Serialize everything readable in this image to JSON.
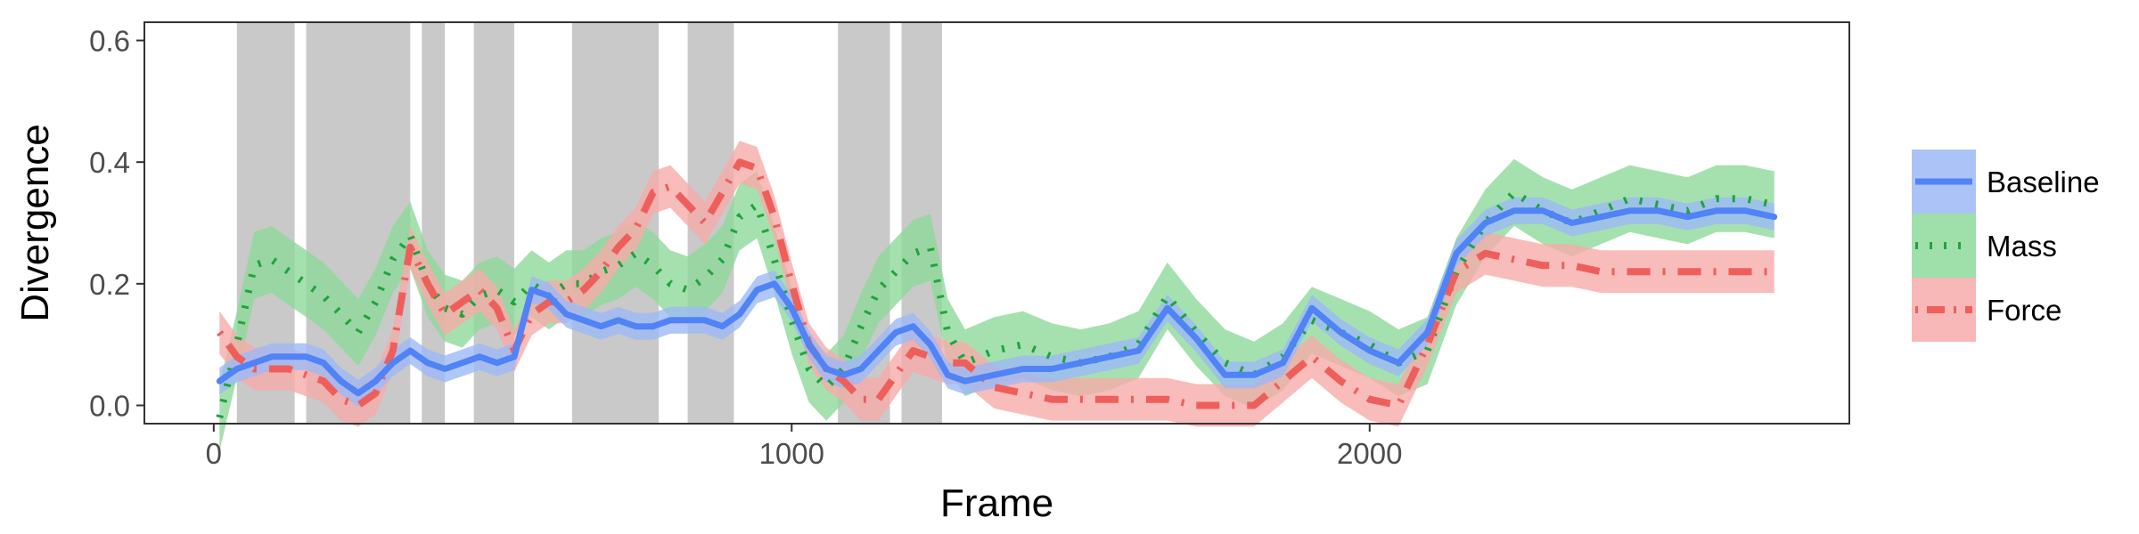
{
  "chart_data": {
    "type": "line",
    "title": "",
    "xlabel": "Frame",
    "ylabel": "Divergence",
    "xlim": [
      -120,
      2830
    ],
    "ylim": [
      -0.03,
      0.63
    ],
    "x_ticks": [
      0,
      1000,
      2000
    ],
    "y_ticks": [
      0.0,
      0.2,
      0.4,
      0.6
    ],
    "x_tick_labels": [
      "0",
      "1000",
      "2000"
    ],
    "y_tick_labels": [
      "0.0",
      "0.2",
      "0.4",
      "0.6"
    ],
    "grid": false,
    "legend_position": "right",
    "shaded_intervals": [
      [
        40,
        140
      ],
      [
        160,
        340
      ],
      [
        360,
        400
      ],
      [
        450,
        520
      ],
      [
        620,
        770
      ],
      [
        820,
        900
      ],
      [
        1080,
        1170
      ],
      [
        1190,
        1260
      ]
    ],
    "x": [
      10,
      40,
      70,
      100,
      130,
      160,
      190,
      220,
      250,
      280,
      310,
      340,
      370,
      400,
      430,
      460,
      490,
      520,
      550,
      580,
      610,
      640,
      670,
      700,
      730,
      760,
      790,
      820,
      850,
      880,
      910,
      940,
      970,
      1000,
      1030,
      1060,
      1090,
      1120,
      1150,
      1180,
      1210,
      1240,
      1270,
      1300,
      1350,
      1400,
      1450,
      1500,
      1550,
      1600,
      1650,
      1700,
      1750,
      1800,
      1850,
      1900,
      1950,
      2000,
      2050,
      2100,
      2150,
      2200,
      2250,
      2300,
      2350,
      2400,
      2450,
      2500,
      2550,
      2600,
      2650,
      2700
    ],
    "series": [
      {
        "name": "Baseline",
        "color": "#5083F5",
        "band_color": "#9CB9F6",
        "line_style": "solid",
        "values": [
          0.04,
          0.06,
          0.07,
          0.08,
          0.08,
          0.08,
          0.07,
          0.04,
          0.02,
          0.04,
          0.07,
          0.09,
          0.07,
          0.06,
          0.07,
          0.08,
          0.07,
          0.08,
          0.19,
          0.18,
          0.15,
          0.14,
          0.13,
          0.14,
          0.13,
          0.13,
          0.14,
          0.14,
          0.14,
          0.13,
          0.15,
          0.19,
          0.2,
          0.16,
          0.1,
          0.06,
          0.05,
          0.06,
          0.09,
          0.12,
          0.13,
          0.1,
          0.05,
          0.04,
          0.05,
          0.06,
          0.06,
          0.07,
          0.08,
          0.09,
          0.16,
          0.11,
          0.05,
          0.05,
          0.07,
          0.16,
          0.12,
          0.09,
          0.07,
          0.12,
          0.25,
          0.3,
          0.32,
          0.32,
          0.3,
          0.31,
          0.32,
          0.32,
          0.31,
          0.32,
          0.32,
          0.31
        ]
      },
      {
        "name": "Mass",
        "color": "#1FA43C",
        "band_color": "#8ED99A",
        "line_style": "dotted",
        "values": [
          -0.02,
          0.1,
          0.23,
          0.24,
          0.22,
          0.2,
          0.18,
          0.15,
          0.12,
          0.17,
          0.24,
          0.28,
          0.2,
          0.16,
          0.15,
          0.18,
          0.19,
          0.17,
          0.2,
          0.18,
          0.2,
          0.2,
          0.22,
          0.23,
          0.25,
          0.23,
          0.2,
          0.19,
          0.21,
          0.24,
          0.31,
          0.33,
          0.24,
          0.14,
          0.06,
          0.03,
          0.06,
          0.13,
          0.19,
          0.22,
          0.25,
          0.26,
          0.12,
          0.07,
          0.09,
          0.1,
          0.08,
          0.07,
          0.08,
          0.1,
          0.18,
          0.12,
          0.07,
          0.05,
          0.08,
          0.14,
          0.12,
          0.1,
          0.07,
          0.09,
          0.22,
          0.3,
          0.35,
          0.32,
          0.3,
          0.32,
          0.34,
          0.33,
          0.32,
          0.34,
          0.34,
          0.33
        ]
      },
      {
        "name": "Force",
        "color": "#EE5F5B",
        "band_color": "#F6ABAA",
        "line_style": "dotdash",
        "values": [
          0.12,
          0.08,
          0.06,
          0.06,
          0.06,
          0.05,
          0.04,
          0.01,
          0.0,
          0.02,
          0.09,
          0.26,
          0.2,
          0.15,
          0.17,
          0.19,
          0.16,
          0.09,
          0.15,
          0.17,
          0.17,
          0.19,
          0.22,
          0.26,
          0.29,
          0.35,
          0.36,
          0.33,
          0.3,
          0.35,
          0.4,
          0.39,
          0.31,
          0.2,
          0.1,
          0.06,
          0.04,
          0.01,
          0.01,
          0.05,
          0.09,
          0.08,
          0.07,
          0.07,
          0.03,
          0.02,
          0.01,
          0.01,
          0.01,
          0.01,
          0.01,
          0.0,
          0.0,
          0.0,
          0.04,
          0.08,
          0.04,
          0.01,
          0.0,
          0.1,
          0.22,
          0.25,
          0.24,
          0.23,
          0.23,
          0.22,
          0.22,
          0.22,
          0.22,
          0.22,
          0.22,
          0.22
        ]
      }
    ]
  }
}
